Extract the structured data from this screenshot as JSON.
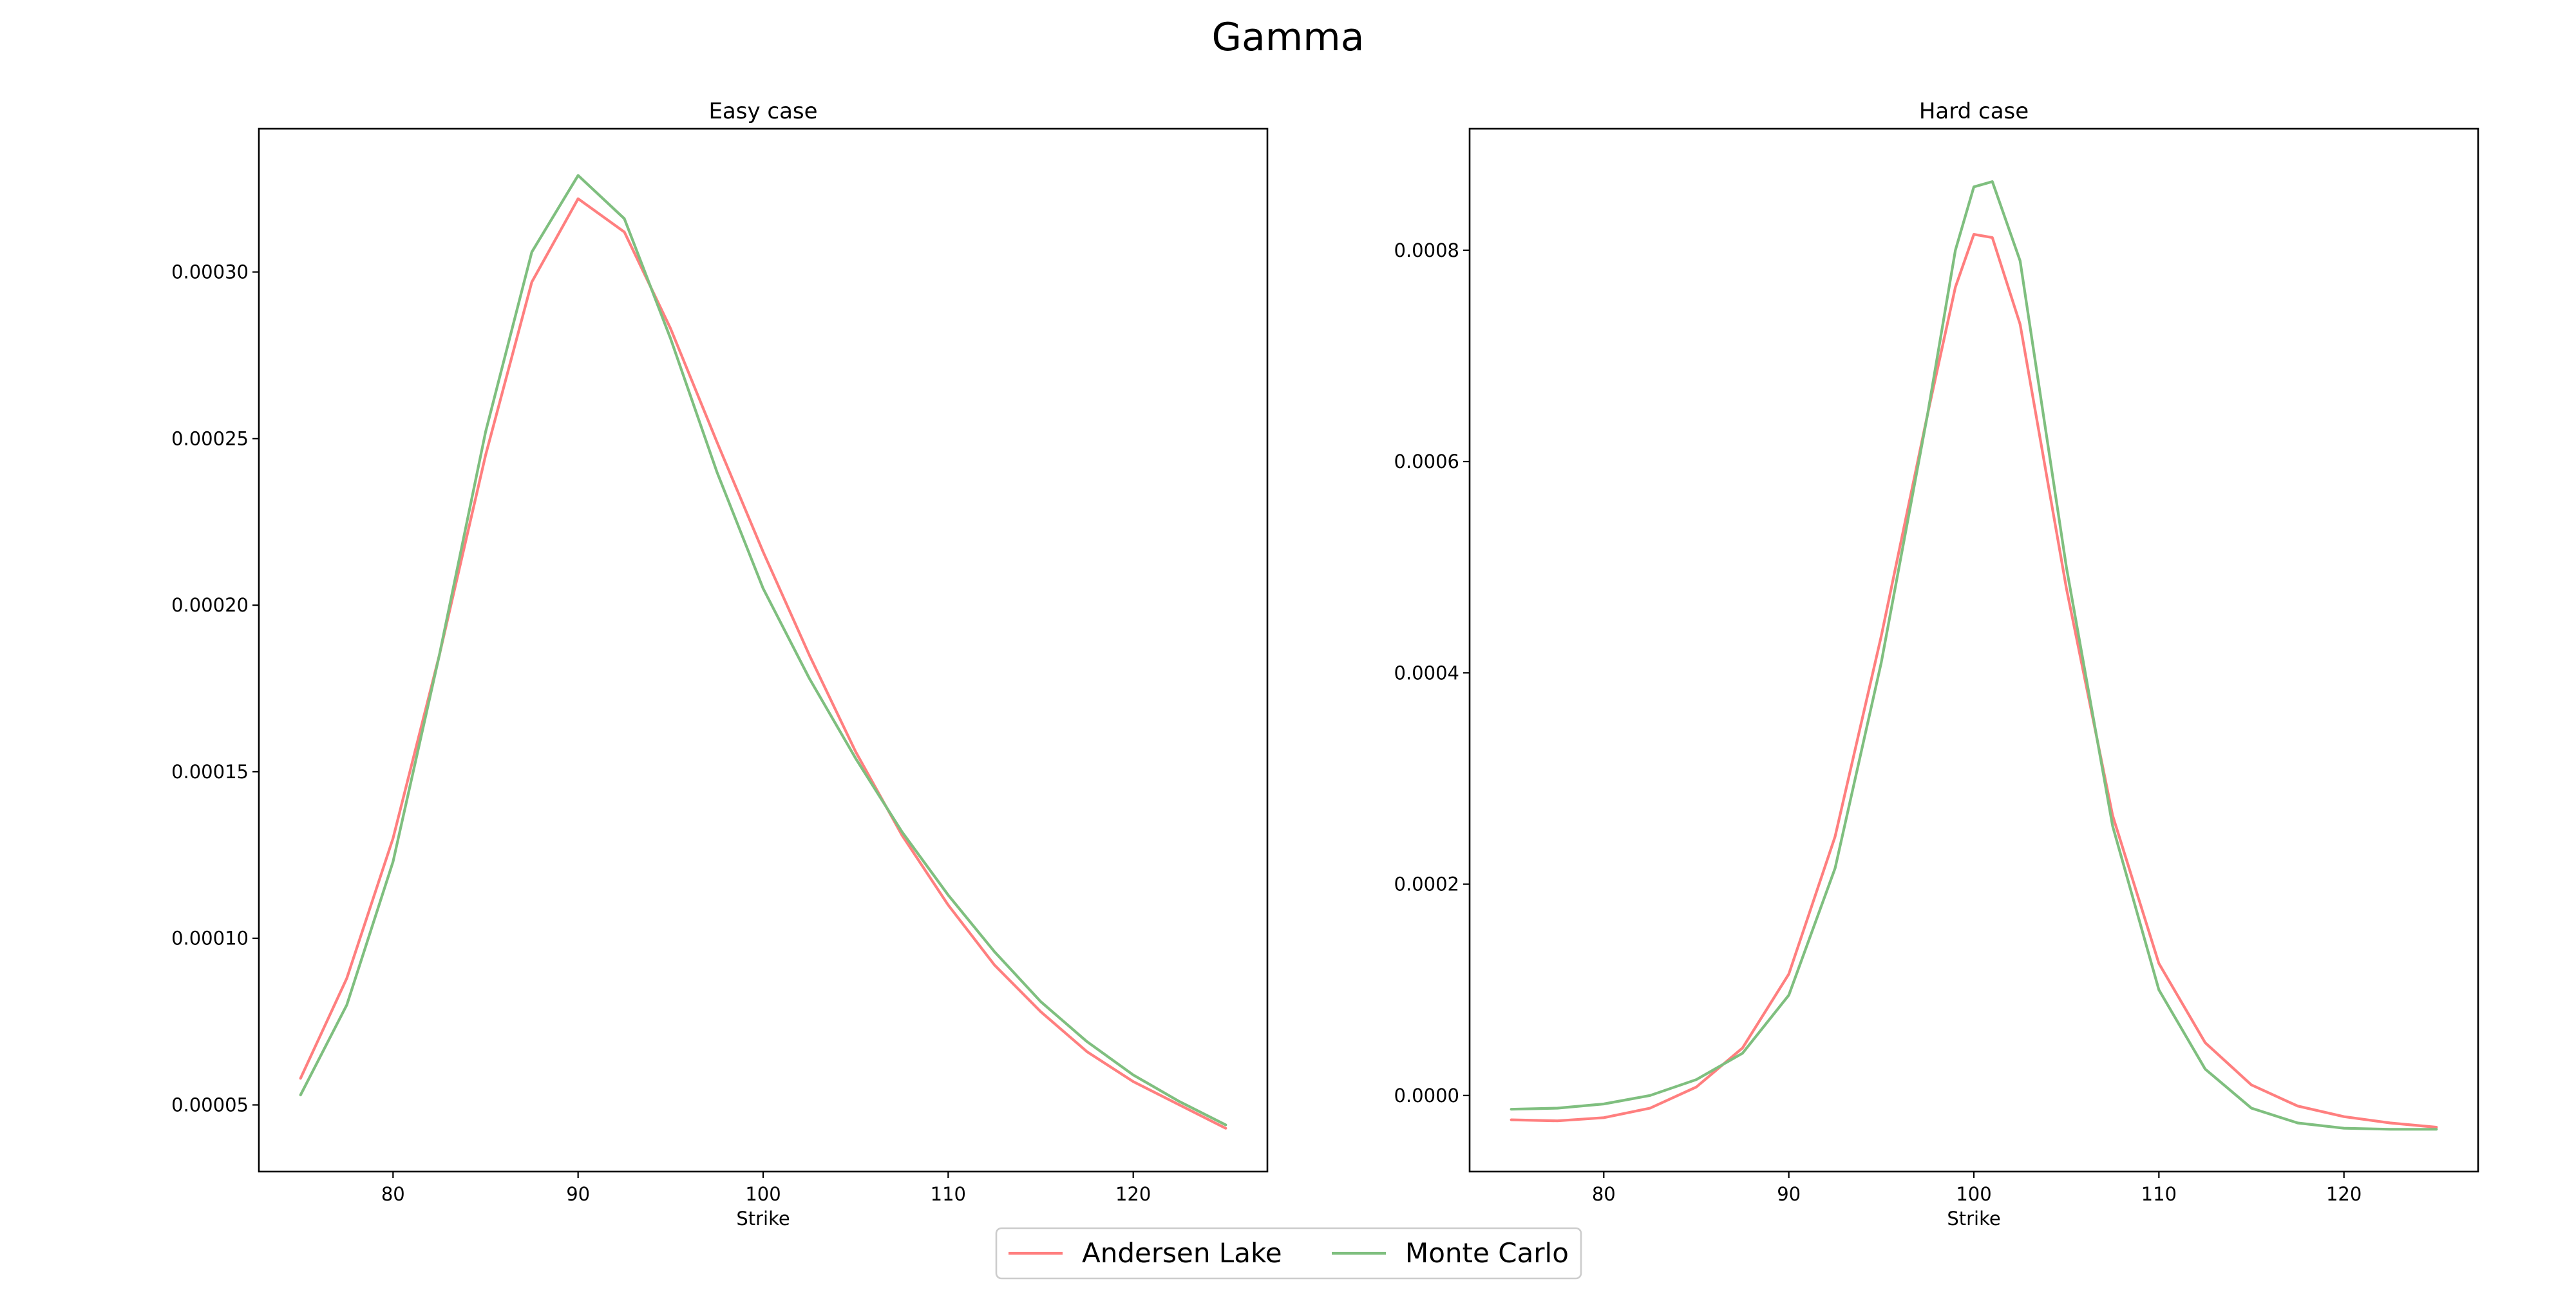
{
  "figure": {
    "suptitle": "Gamma"
  },
  "legend": {
    "position": "bottom-center",
    "entries": [
      {
        "label": "Andersen Lake",
        "color": "#ff7f7f"
      },
      {
        "label": "Monte Carlo",
        "color": "#7fbf7f"
      }
    ]
  },
  "chart_data": [
    {
      "type": "line",
      "title": "Easy case",
      "xlabel": "Strike",
      "ylabel": "",
      "xlim": [
        72.75,
        127.25
      ],
      "ylim": [
        3e-05,
        0.000343
      ],
      "xticks": [
        80,
        90,
        100,
        110,
        120
      ],
      "xtick_labels": [
        "80",
        "90",
        "100",
        "110",
        "120"
      ],
      "yticks": [
        5e-05,
        0.0001,
        0.00015,
        0.0002,
        0.00025,
        0.0003
      ],
      "ytick_labels": [
        "0.00005",
        "0.00010",
        "0.00015",
        "0.00020",
        "0.00025",
        "0.00030"
      ],
      "grid": false,
      "x": [
        75,
        77.5,
        80,
        82.5,
        85,
        87.5,
        90,
        92.5,
        95,
        97.5,
        100,
        102.5,
        105,
        107.5,
        110,
        112.5,
        115,
        117.5,
        120,
        122.5,
        125
      ],
      "series": [
        {
          "name": "Andersen Lake",
          "color": "#ff7f7f",
          "values": [
            5.8e-05,
            8.8e-05,
            0.00013,
            0.000185,
            0.000245,
            0.000297,
            0.000322,
            0.000312,
            0.000283,
            0.000249,
            0.000216,
            0.000185,
            0.000156,
            0.000131,
            0.00011,
            9.2e-05,
            7.8e-05,
            6.6e-05,
            5.7e-05,
            5e-05,
            4.3e-05
          ]
        },
        {
          "name": "Monte Carlo",
          "color": "#7fbf7f",
          "values": [
            5.3e-05,
            8e-05,
            0.000123,
            0.000185,
            0.000252,
            0.000306,
            0.000329,
            0.000316,
            0.00028,
            0.00024,
            0.000205,
            0.000178,
            0.000154,
            0.000132,
            0.000113,
            9.6e-05,
            8.1e-05,
            6.9e-05,
            5.9e-05,
            5.1e-05,
            4.4e-05
          ]
        }
      ]
    },
    {
      "type": "line",
      "title": "Hard case",
      "xlabel": "Strike",
      "ylabel": "",
      "xlim": [
        72.75,
        127.25
      ],
      "ylim": [
        -7.2e-05,
        0.000915
      ],
      "xticks": [
        80,
        90,
        100,
        110,
        120
      ],
      "xtick_labels": [
        "80",
        "90",
        "100",
        "110",
        "120"
      ],
      "yticks": [
        0.0,
        0.0002,
        0.0004,
        0.0006,
        0.0008
      ],
      "ytick_labels": [
        "0.0000",
        "0.0002",
        "0.0004",
        "0.0006",
        "0.0008"
      ],
      "grid": false,
      "x": [
        75,
        77.5,
        80,
        82.5,
        85,
        87.5,
        90,
        92.5,
        95,
        97.5,
        99,
        100,
        101,
        102.5,
        105,
        107.5,
        110,
        112.5,
        115,
        117.5,
        120,
        122.5,
        125
      ],
      "series": [
        {
          "name": "Andersen Lake",
          "color": "#ff7f7f",
          "values": [
            -2.3e-05,
            -2.4e-05,
            -2.1e-05,
            -1.2e-05,
            8e-06,
            4.5e-05,
            0.000115,
            0.000245,
            0.000435,
            0.000645,
            0.000765,
            0.000815,
            0.000812,
            0.00073,
            0.00048,
            0.000265,
            0.000125,
            5e-05,
            1e-05,
            -1e-05,
            -2e-05,
            -2.6e-05,
            -3e-05
          ]
        },
        {
          "name": "Monte Carlo",
          "color": "#7fbf7f",
          "values": [
            -1.3e-05,
            -1.2e-05,
            -8e-06,
            0.0,
            1.5e-05,
            4e-05,
            9.5e-05,
            0.000215,
            0.00041,
            0.000645,
            0.0008,
            0.00086,
            0.000865,
            0.00079,
            0.0005,
            0.000255,
            0.0001,
            2.5e-05,
            -1.2e-05,
            -2.6e-05,
            -3.1e-05,
            -3.2e-05,
            -3.2e-05
          ]
        }
      ]
    }
  ]
}
